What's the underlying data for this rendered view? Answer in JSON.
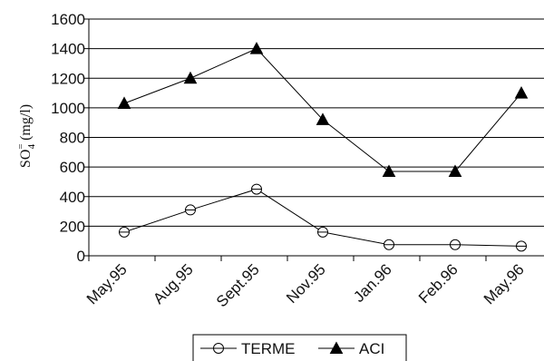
{
  "chart_data": {
    "type": "line",
    "categories": [
      "May.95",
      "Aug.95",
      "Sept.95",
      "Nov.95",
      "Jan.96",
      "Feb.96",
      "May.96"
    ],
    "series": [
      {
        "name": "TERME",
        "values": [
          160,
          310,
          450,
          160,
          75,
          75,
          65
        ],
        "marker": "circle-open"
      },
      {
        "name": "ACI",
        "values": [
          1030,
          1200,
          1400,
          920,
          570,
          570,
          1100
        ],
        "marker": "triangle-filled"
      }
    ],
    "title": "",
    "xlabel": "",
    "ylabel_main": "SO",
    "ylabel_sup": "=",
    "ylabel_sub": "4",
    "ylabel_unit": " (mg/l)",
    "ylim": [
      0,
      1600
    ],
    "yticks": [
      0,
      200,
      400,
      600,
      800,
      1000,
      1200,
      1400,
      1600
    ],
    "grid": true,
    "legend_position": "bottom",
    "colors": {
      "line": "#000000",
      "grid": "#000000"
    }
  }
}
